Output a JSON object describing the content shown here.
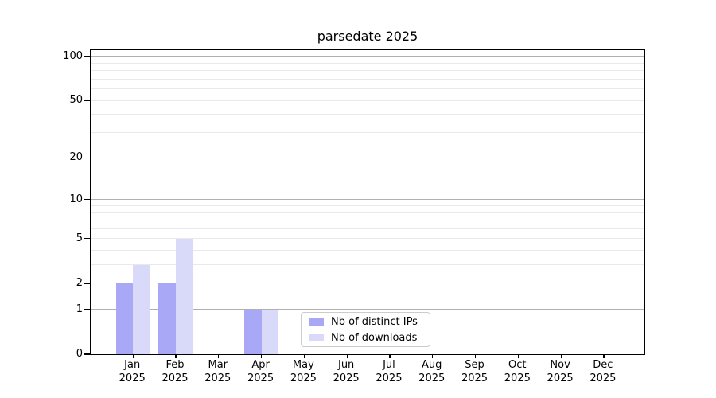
{
  "title": "parsedate 2025",
  "chart_data": {
    "type": "bar",
    "title": "parsedate 2025",
    "xlabel": "",
    "ylabel": "",
    "categories": [
      "Jan",
      "Feb",
      "Mar",
      "Apr",
      "May",
      "Jun",
      "Jul",
      "Aug",
      "Sep",
      "Oct",
      "Nov",
      "Dec"
    ],
    "x_tick_year": "2025",
    "series": [
      {
        "name": "Nb of distinct IPs",
        "color": "#a8a8f7",
        "values": [
          2,
          2,
          0,
          1,
          0,
          0,
          0,
          0,
          0,
          0,
          0,
          0
        ]
      },
      {
        "name": "Nb of downloads",
        "color": "#d9d9fa",
        "values": [
          3,
          5,
          0,
          1,
          0,
          0,
          0,
          0,
          0,
          0,
          0,
          0
        ]
      }
    ],
    "y_axis": {
      "scale": "log10(1+v)",
      "tick_values": [
        0,
        1,
        2,
        5,
        10,
        20,
        50,
        100
      ],
      "tick_labels": [
        "0",
        "1",
        "2",
        "5",
        "10",
        "20",
        "50",
        "100"
      ],
      "major_grid_values": [
        1,
        10,
        100
      ],
      "minor_grid_values": [
        2,
        3,
        4,
        5,
        6,
        7,
        8,
        9,
        20,
        30,
        40,
        50,
        60,
        70,
        80,
        90
      ],
      "ylim": [
        0,
        108
      ]
    },
    "grid": "on",
    "legend_position": "lower center (inside plot)",
    "colors": {
      "major_grid": "#b0b0b0",
      "minor_grid": "#e9e9e9",
      "axis": "#000000",
      "background": "#ffffff",
      "legend_border": "#cccccc"
    }
  }
}
